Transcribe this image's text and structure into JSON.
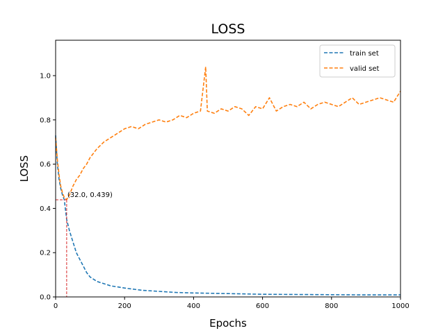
{
  "chart_data": {
    "type": "line",
    "title": "LOSS",
    "xlabel": "Epochs",
    "ylabel": "LOSS",
    "xlim": [
      0,
      1000
    ],
    "ylim": [
      0,
      1.16
    ],
    "xticks": [
      0,
      200,
      400,
      600,
      800,
      1000
    ],
    "yticks": [
      0.0,
      0.2,
      0.4,
      0.6,
      0.8,
      1.0
    ],
    "xtick_labels": [
      "0",
      "200",
      "400",
      "600",
      "800",
      "1000"
    ],
    "ytick_labels": [
      "0.0",
      "0.2",
      "0.4",
      "0.6",
      "0.8",
      "1.0"
    ],
    "grid": false,
    "legend_position": "top-right",
    "series": [
      {
        "name": "train set",
        "color": "#1f77b4",
        "style": "dashed",
        "x": [
          0,
          5,
          10,
          15,
          20,
          25,
          32,
          40,
          50,
          60,
          70,
          80,
          90,
          100,
          120,
          140,
          160,
          180,
          200,
          250,
          300,
          350,
          400,
          500,
          600,
          700,
          800,
          900,
          1000
        ],
        "y": [
          0.73,
          0.6,
          0.53,
          0.49,
          0.46,
          0.44,
          0.35,
          0.3,
          0.25,
          0.2,
          0.17,
          0.14,
          0.11,
          0.09,
          0.07,
          0.06,
          0.05,
          0.045,
          0.04,
          0.03,
          0.025,
          0.02,
          0.018,
          0.015,
          0.012,
          0.011,
          0.01,
          0.009,
          0.009
        ]
      },
      {
        "name": "valid set",
        "color": "#ff7f0e",
        "style": "dashed",
        "x": [
          0,
          5,
          10,
          15,
          20,
          25,
          32,
          40,
          50,
          60,
          70,
          80,
          90,
          100,
          110,
          120,
          140,
          160,
          180,
          200,
          220,
          240,
          260,
          280,
          300,
          320,
          340,
          360,
          380,
          400,
          420,
          435,
          440,
          460,
          480,
          500,
          520,
          540,
          560,
          580,
          600,
          620,
          640,
          660,
          680,
          700,
          720,
          740,
          760,
          780,
          800,
          820,
          840,
          860,
          880,
          900,
          920,
          940,
          960,
          980,
          1000
        ],
        "y": [
          0.72,
          0.62,
          0.55,
          0.5,
          0.47,
          0.45,
          0.44,
          0.46,
          0.5,
          0.53,
          0.55,
          0.58,
          0.6,
          0.63,
          0.65,
          0.67,
          0.7,
          0.72,
          0.74,
          0.76,
          0.77,
          0.76,
          0.78,
          0.79,
          0.8,
          0.79,
          0.8,
          0.82,
          0.81,
          0.83,
          0.84,
          1.04,
          0.84,
          0.83,
          0.85,
          0.84,
          0.86,
          0.85,
          0.82,
          0.86,
          0.85,
          0.9,
          0.84,
          0.86,
          0.87,
          0.86,
          0.88,
          0.85,
          0.87,
          0.88,
          0.87,
          0.86,
          0.88,
          0.9,
          0.87,
          0.88,
          0.89,
          0.9,
          0.89,
          0.88,
          0.93
        ]
      }
    ],
    "annotation": {
      "text": "(32.0, 0.439)",
      "x": 32.0,
      "y": 0.439,
      "color": "#d62728"
    }
  }
}
